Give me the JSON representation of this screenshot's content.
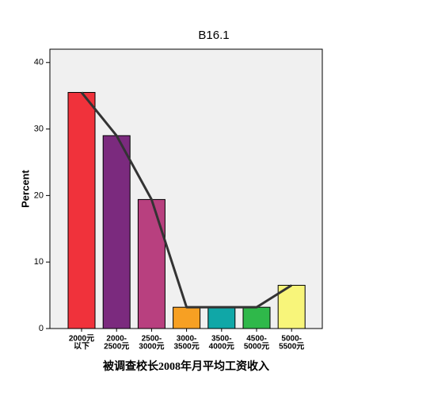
{
  "chart_data": {
    "type": "bar",
    "title": "B16.1",
    "y_label": "Percent",
    "x_label": "被调查校长2008年月平均工资收入",
    "categories": [
      [
        "2000元",
        "以下"
      ],
      [
        "2000-",
        "2500元"
      ],
      [
        "2500-",
        "3000元"
      ],
      [
        "3000-",
        "3500元"
      ],
      [
        "3500-",
        "4000元"
      ],
      [
        "4500-",
        "5000元"
      ],
      [
        "5000-",
        "5500元"
      ]
    ],
    "values": [
      35.5,
      29.0,
      19.4,
      3.2,
      3.2,
      3.2,
      6.5
    ],
    "colors": [
      "#f0323b",
      "#7b2a7e",
      "#b8407f",
      "#f7a023",
      "#10a7a7",
      "#2fb84a",
      "#f8f57a"
    ],
    "line": {
      "values": [
        35.5,
        29.0,
        19.4,
        3.2,
        3.2,
        3.2,
        6.5
      ],
      "color": "#333333"
    },
    "ylim": [
      0,
      42
    ],
    "yticks": [
      0,
      10,
      20,
      30,
      40
    ]
  }
}
